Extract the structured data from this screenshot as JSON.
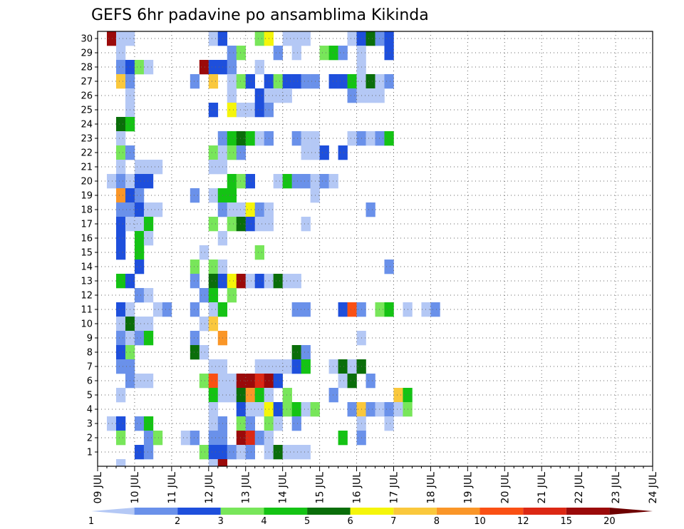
{
  "chart_data": {
    "type": "heatmap",
    "title": "GEFS 6hr padavine po ansamblima Kikinda",
    "xlabel": "",
    "ylabel": "",
    "x_ticks": [
      "09 JUL",
      "10 JUL",
      "11 JUL",
      "12 JUL",
      "13 JUL",
      "14 JUL",
      "15 JUL",
      "16 JUL",
      "17 JUL",
      "18 JUL",
      "19 JUL",
      "20 JUL",
      "21 JUL",
      "22 JUL",
      "23 JUL",
      "24 JUL"
    ],
    "y_ticks": [
      "1",
      "2",
      "3",
      "4",
      "5",
      "6",
      "7",
      "8",
      "9",
      "10",
      "11",
      "12",
      "13",
      "14",
      "15",
      "16",
      "17",
      "18",
      "19",
      "20",
      "21",
      "22",
      "23",
      "24",
      "25",
      "26",
      "27",
      "28",
      "29",
      "30"
    ],
    "xlim_steps": [
      0,
      60
    ],
    "ylim": [
      0,
      30
    ],
    "grid": true,
    "colorbar": {
      "labels": [
        "1",
        "2",
        "3",
        "4",
        "5",
        "6",
        "7",
        "8",
        "10",
        "12",
        "15",
        "20"
      ],
      "colors": [
        "#b4c8f5",
        "#6a91ea",
        "#1e4fdc",
        "#78e65a",
        "#14c314",
        "#0a6e0a",
        "#f5f50a",
        "#fac83c",
        "#fa9628",
        "#fa5014",
        "#dc2814",
        "#9b0a0a",
        "#6e0000"
      ]
    },
    "units_note": "cells = [member, step(6h from 09 JUL 00z), class index into colorbar.colors]",
    "cells": [
      [
        30,
        1,
        11
      ],
      [
        30,
        2,
        0
      ],
      [
        30,
        3,
        0
      ],
      [
        30,
        12,
        0
      ],
      [
        30,
        13,
        2
      ],
      [
        30,
        17,
        3
      ],
      [
        30,
        18,
        6
      ],
      [
        30,
        20,
        0
      ],
      [
        30,
        21,
        0
      ],
      [
        30,
        22,
        0
      ],
      [
        30,
        27,
        0
      ],
      [
        30,
        28,
        2
      ],
      [
        30,
        29,
        5
      ],
      [
        30,
        30,
        1
      ],
      [
        30,
        31,
        2
      ],
      [
        29,
        2,
        0
      ],
      [
        29,
        14,
        1
      ],
      [
        29,
        15,
        3
      ],
      [
        29,
        19,
        1
      ],
      [
        29,
        21,
        0
      ],
      [
        29,
        24,
        3
      ],
      [
        29,
        25,
        4
      ],
      [
        29,
        26,
        1
      ],
      [
        29,
        28,
        0
      ],
      [
        29,
        31,
        2
      ],
      [
        28,
        2,
        1
      ],
      [
        28,
        3,
        2
      ],
      [
        28,
        4,
        3
      ],
      [
        28,
        5,
        0
      ],
      [
        28,
        11,
        11
      ],
      [
        28,
        12,
        2
      ],
      [
        28,
        13,
        2
      ],
      [
        28,
        14,
        1
      ],
      [
        28,
        17,
        0
      ],
      [
        28,
        28,
        0
      ],
      [
        27,
        2,
        7
      ],
      [
        27,
        3,
        1
      ],
      [
        27,
        10,
        1
      ],
      [
        27,
        12,
        7
      ],
      [
        27,
        14,
        0
      ],
      [
        27,
        15,
        3
      ],
      [
        27,
        16,
        2
      ],
      [
        27,
        18,
        2
      ],
      [
        27,
        19,
        3
      ],
      [
        27,
        20,
        2
      ],
      [
        27,
        21,
        2
      ],
      [
        27,
        22,
        1
      ],
      [
        27,
        23,
        1
      ],
      [
        27,
        25,
        2
      ],
      [
        27,
        26,
        2
      ],
      [
        27,
        27,
        4
      ],
      [
        27,
        28,
        0
      ],
      [
        27,
        29,
        5
      ],
      [
        27,
        30,
        0
      ],
      [
        27,
        31,
        1
      ],
      [
        26,
        3,
        0
      ],
      [
        26,
        14,
        0
      ],
      [
        26,
        17,
        2
      ],
      [
        26,
        18,
        0
      ],
      [
        26,
        19,
        0
      ],
      [
        26,
        20,
        0
      ],
      [
        26,
        27,
        1
      ],
      [
        26,
        28,
        0
      ],
      [
        26,
        29,
        0
      ],
      [
        26,
        30,
        0
      ],
      [
        25,
        3,
        0
      ],
      [
        25,
        12,
        2
      ],
      [
        25,
        14,
        6
      ],
      [
        25,
        15,
        0
      ],
      [
        25,
        16,
        0
      ],
      [
        25,
        17,
        2
      ],
      [
        25,
        18,
        1
      ],
      [
        24,
        2,
        5
      ],
      [
        24,
        3,
        4
      ],
      [
        23,
        2,
        0
      ],
      [
        23,
        13,
        1
      ],
      [
        23,
        14,
        4
      ],
      [
        23,
        15,
        5
      ],
      [
        23,
        16,
        4
      ],
      [
        23,
        17,
        0
      ],
      [
        23,
        18,
        1
      ],
      [
        23,
        21,
        1
      ],
      [
        23,
        22,
        0
      ],
      [
        23,
        23,
        0
      ],
      [
        23,
        27,
        0
      ],
      [
        23,
        28,
        1
      ],
      [
        23,
        29,
        0
      ],
      [
        23,
        30,
        1
      ],
      [
        23,
        31,
        4
      ],
      [
        22,
        2,
        3
      ],
      [
        22,
        3,
        1
      ],
      [
        22,
        12,
        3
      ],
      [
        22,
        13,
        0
      ],
      [
        22,
        14,
        3
      ],
      [
        22,
        15,
        1
      ],
      [
        22,
        22,
        0
      ],
      [
        22,
        23,
        0
      ],
      [
        22,
        24,
        2
      ],
      [
        22,
        26,
        2
      ],
      [
        21,
        2,
        0
      ],
      [
        21,
        4,
        0
      ],
      [
        21,
        5,
        0
      ],
      [
        21,
        6,
        0
      ],
      [
        21,
        12,
        0
      ],
      [
        21,
        13,
        0
      ],
      [
        20,
        1,
        0
      ],
      [
        20,
        2,
        1
      ],
      [
        20,
        3,
        0
      ],
      [
        20,
        4,
        2
      ],
      [
        20,
        5,
        2
      ],
      [
        20,
        14,
        4
      ],
      [
        20,
        15,
        3
      ],
      [
        20,
        16,
        2
      ],
      [
        20,
        19,
        0
      ],
      [
        20,
        20,
        4
      ],
      [
        20,
        21,
        1
      ],
      [
        20,
        22,
        1
      ],
      [
        20,
        23,
        0
      ],
      [
        20,
        24,
        1
      ],
      [
        20,
        25,
        0
      ],
      [
        19,
        2,
        8
      ],
      [
        19,
        3,
        2
      ],
      [
        19,
        4,
        1
      ],
      [
        19,
        10,
        1
      ],
      [
        19,
        12,
        0
      ],
      [
        19,
        13,
        4
      ],
      [
        19,
        14,
        4
      ],
      [
        19,
        23,
        0
      ],
      [
        18,
        2,
        1
      ],
      [
        18,
        3,
        1
      ],
      [
        18,
        4,
        2
      ],
      [
        18,
        5,
        0
      ],
      [
        18,
        6,
        0
      ],
      [
        18,
        13,
        1
      ],
      [
        18,
        14,
        0
      ],
      [
        18,
        15,
        0
      ],
      [
        18,
        16,
        6
      ],
      [
        18,
        17,
        1
      ],
      [
        18,
        18,
        0
      ],
      [
        18,
        29,
        1
      ],
      [
        17,
        2,
        2
      ],
      [
        17,
        3,
        0
      ],
      [
        17,
        4,
        0
      ],
      [
        17,
        5,
        4
      ],
      [
        17,
        12,
        3
      ],
      [
        17,
        14,
        3
      ],
      [
        17,
        15,
        5
      ],
      [
        17,
        16,
        2
      ],
      [
        17,
        17,
        0
      ],
      [
        17,
        18,
        0
      ],
      [
        17,
        22,
        0
      ],
      [
        16,
        2,
        2
      ],
      [
        16,
        4,
        4
      ],
      [
        16,
        5,
        0
      ],
      [
        16,
        13,
        0
      ],
      [
        15,
        2,
        2
      ],
      [
        15,
        4,
        4
      ],
      [
        15,
        11,
        0
      ],
      [
        15,
        17,
        3
      ],
      [
        14,
        4,
        2
      ],
      [
        14,
        10,
        3
      ],
      [
        14,
        12,
        3
      ],
      [
        14,
        13,
        0
      ],
      [
        14,
        31,
        1
      ],
      [
        13,
        2,
        4
      ],
      [
        13,
        3,
        2
      ],
      [
        13,
        10,
        1
      ],
      [
        13,
        12,
        5
      ],
      [
        13,
        13,
        2
      ],
      [
        13,
        14,
        6
      ],
      [
        13,
        15,
        11
      ],
      [
        13,
        16,
        0
      ],
      [
        13,
        17,
        2
      ],
      [
        13,
        18,
        0
      ],
      [
        13,
        19,
        5
      ],
      [
        13,
        20,
        0
      ],
      [
        13,
        21,
        0
      ],
      [
        12,
        4,
        1
      ],
      [
        12,
        5,
        0
      ],
      [
        12,
        11,
        1
      ],
      [
        12,
        12,
        4
      ],
      [
        12,
        14,
        3
      ],
      [
        11,
        2,
        2
      ],
      [
        11,
        3,
        0
      ],
      [
        11,
        6,
        0
      ],
      [
        11,
        7,
        1
      ],
      [
        11,
        10,
        1
      ],
      [
        11,
        12,
        0
      ],
      [
        11,
        13,
        4
      ],
      [
        11,
        21,
        1
      ],
      [
        11,
        22,
        1
      ],
      [
        11,
        26,
        2
      ],
      [
        11,
        27,
        9
      ],
      [
        11,
        28,
        1
      ],
      [
        11,
        30,
        3
      ],
      [
        11,
        31,
        4
      ],
      [
        11,
        33,
        0
      ],
      [
        11,
        35,
        0
      ],
      [
        11,
        36,
        1
      ],
      [
        10,
        2,
        0
      ],
      [
        10,
        3,
        5
      ],
      [
        10,
        4,
        0
      ],
      [
        10,
        5,
        0
      ],
      [
        10,
        11,
        0
      ],
      [
        10,
        12,
        7
      ],
      [
        9,
        2,
        1
      ],
      [
        9,
        3,
        0
      ],
      [
        9,
        4,
        1
      ],
      [
        9,
        5,
        4
      ],
      [
        9,
        10,
        1
      ],
      [
        9,
        13,
        8
      ],
      [
        9,
        28,
        0
      ],
      [
        8,
        2,
        2
      ],
      [
        8,
        3,
        3
      ],
      [
        8,
        10,
        5
      ],
      [
        8,
        11,
        0
      ],
      [
        8,
        21,
        5
      ],
      [
        8,
        22,
        1
      ],
      [
        7,
        2,
        1
      ],
      [
        7,
        3,
        1
      ],
      [
        7,
        12,
        0
      ],
      [
        7,
        13,
        0
      ],
      [
        7,
        17,
        0
      ],
      [
        7,
        18,
        0
      ],
      [
        7,
        19,
        0
      ],
      [
        7,
        20,
        0
      ],
      [
        7,
        21,
        2
      ],
      [
        7,
        22,
        4
      ],
      [
        7,
        25,
        0
      ],
      [
        7,
        26,
        5
      ],
      [
        7,
        27,
        0
      ],
      [
        7,
        28,
        5
      ],
      [
        6,
        3,
        1
      ],
      [
        6,
        4,
        0
      ],
      [
        6,
        5,
        0
      ],
      [
        6,
        11,
        3
      ],
      [
        6,
        12,
        9
      ],
      [
        6,
        13,
        0
      ],
      [
        6,
        14,
        0
      ],
      [
        6,
        15,
        11
      ],
      [
        6,
        16,
        11
      ],
      [
        6,
        17,
        10
      ],
      [
        6,
        18,
        11
      ],
      [
        6,
        19,
        2
      ],
      [
        6,
        26,
        0
      ],
      [
        6,
        27,
        5
      ],
      [
        6,
        29,
        1
      ],
      [
        5,
        2,
        0
      ],
      [
        5,
        12,
        4
      ],
      [
        5,
        13,
        0
      ],
      [
        5,
        14,
        0
      ],
      [
        5,
        15,
        5
      ],
      [
        5,
        16,
        8
      ],
      [
        5,
        17,
        4
      ],
      [
        5,
        18,
        0
      ],
      [
        5,
        20,
        3
      ],
      [
        5,
        25,
        1
      ],
      [
        5,
        32,
        7
      ],
      [
        5,
        33,
        4
      ],
      [
        4,
        12,
        0
      ],
      [
        4,
        15,
        2
      ],
      [
        4,
        16,
        0
      ],
      [
        4,
        17,
        0
      ],
      [
        4,
        18,
        6
      ],
      [
        4,
        19,
        2
      ],
      [
        4,
        20,
        3
      ],
      [
        4,
        21,
        4
      ],
      [
        4,
        22,
        0
      ],
      [
        4,
        23,
        3
      ],
      [
        4,
        27,
        1
      ],
      [
        4,
        28,
        7
      ],
      [
        4,
        29,
        1
      ],
      [
        4,
        30,
        0
      ],
      [
        4,
        31,
        1
      ],
      [
        4,
        32,
        0
      ],
      [
        4,
        33,
        3
      ],
      [
        3,
        1,
        0
      ],
      [
        3,
        2,
        2
      ],
      [
        3,
        4,
        1
      ],
      [
        3,
        5,
        4
      ],
      [
        3,
        12,
        0
      ],
      [
        3,
        13,
        1
      ],
      [
        3,
        15,
        3
      ],
      [
        3,
        16,
        1
      ],
      [
        3,
        18,
        3
      ],
      [
        3,
        19,
        0
      ],
      [
        3,
        21,
        1
      ],
      [
        3,
        28,
        0
      ],
      [
        3,
        31,
        0
      ],
      [
        2,
        2,
        3
      ],
      [
        2,
        5,
        1
      ],
      [
        2,
        6,
        3
      ],
      [
        2,
        9,
        0
      ],
      [
        2,
        10,
        1
      ],
      [
        2,
        12,
        1
      ],
      [
        2,
        13,
        1
      ],
      [
        2,
        15,
        11
      ],
      [
        2,
        16,
        10
      ],
      [
        2,
        17,
        1
      ],
      [
        2,
        18,
        0
      ],
      [
        2,
        26,
        4
      ],
      [
        2,
        28,
        1
      ],
      [
        1,
        4,
        2
      ],
      [
        1,
        5,
        1
      ],
      [
        1,
        11,
        3
      ],
      [
        1,
        12,
        2
      ],
      [
        1,
        13,
        2
      ],
      [
        1,
        14,
        1
      ],
      [
        1,
        15,
        0
      ],
      [
        1,
        16,
        1
      ],
      [
        1,
        18,
        0
      ],
      [
        1,
        19,
        5
      ],
      [
        1,
        20,
        0
      ],
      [
        1,
        21,
        0
      ],
      [
        1,
        22,
        0
      ],
      [
        0,
        2,
        0
      ],
      [
        0,
        12,
        0
      ],
      [
        0,
        13,
        11
      ]
    ]
  }
}
